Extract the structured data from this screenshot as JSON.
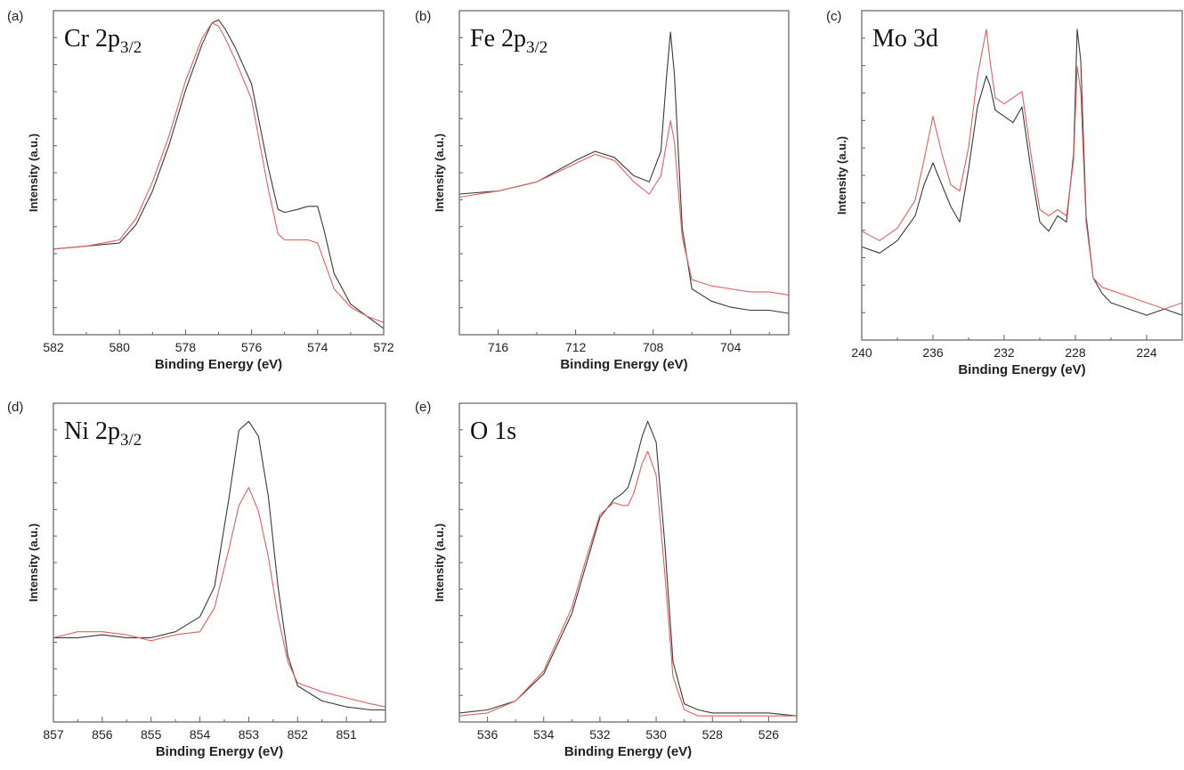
{
  "colors": {
    "series_a": "#3a3a3a",
    "series_b": "#e06060",
    "axis": "#606060"
  },
  "chart_data": [
    {
      "type": "line",
      "letter": "(a)",
      "element": "Cr 2p",
      "subscript": "3/2",
      "xlabel": "Binding Energy (eV)",
      "ylabel": "Intensity (a.u.)",
      "xlim": [
        582,
        572
      ],
      "ylim": [
        0,
        1.06
      ],
      "xticks": [
        582,
        580,
        578,
        576,
        574,
        572
      ],
      "series": [
        {
          "x": [
            582,
            581,
            580,
            579.5,
            579,
            578.5,
            578,
            577.5,
            577.2,
            577,
            576.8,
            576.5,
            576,
            575.5,
            575.2,
            575,
            574.6,
            574.3,
            574,
            573.8,
            573.5,
            573,
            572.5,
            572
          ],
          "values": [
            0.28,
            0.29,
            0.3,
            0.36,
            0.47,
            0.62,
            0.8,
            0.95,
            1.02,
            1.03,
            1.0,
            0.94,
            0.82,
            0.55,
            0.41,
            0.4,
            0.41,
            0.42,
            0.42,
            0.34,
            0.2,
            0.1,
            0.06,
            0.02
          ]
        },
        {
          "x": [
            582,
            581,
            580,
            579.5,
            579,
            578.5,
            578,
            577.5,
            577.2,
            577,
            576.8,
            576.5,
            576,
            575.5,
            575.2,
            575,
            574.6,
            574.3,
            574,
            573.8,
            573.5,
            573,
            572.5,
            572
          ],
          "values": [
            0.28,
            0.29,
            0.31,
            0.38,
            0.5,
            0.65,
            0.83,
            0.97,
            1.02,
            1.01,
            0.97,
            0.9,
            0.77,
            0.48,
            0.33,
            0.31,
            0.31,
            0.31,
            0.3,
            0.24,
            0.15,
            0.09,
            0.06,
            0.04
          ]
        }
      ]
    },
    {
      "type": "line",
      "letter": "(b)",
      "element": "Fe 2p",
      "subscript": "3/2",
      "xlabel": "Binding Energy (eV)",
      "ylabel": "Intensity (a.u.)",
      "xlim": [
        718,
        701
      ],
      "ylim": [
        0,
        1.06
      ],
      "xticks": [
        716,
        712,
        708,
        704
      ],
      "series": [
        {
          "x": [
            718,
            716,
            714,
            712,
            711,
            710,
            709,
            708.2,
            707.6,
            707.3,
            707.1,
            706.9,
            706.5,
            706,
            705,
            704,
            703,
            702,
            701
          ],
          "values": [
            0.46,
            0.47,
            0.5,
            0.57,
            0.6,
            0.58,
            0.52,
            0.5,
            0.6,
            0.85,
            0.99,
            0.85,
            0.35,
            0.15,
            0.11,
            0.09,
            0.08,
            0.08,
            0.07
          ]
        },
        {
          "x": [
            718,
            716,
            714,
            712,
            711,
            710,
            709,
            708.2,
            707.6,
            707.3,
            707.1,
            706.9,
            706.5,
            706,
            705,
            704,
            703,
            702,
            701
          ],
          "values": [
            0.45,
            0.47,
            0.5,
            0.56,
            0.59,
            0.57,
            0.5,
            0.46,
            0.52,
            0.63,
            0.7,
            0.63,
            0.32,
            0.18,
            0.16,
            0.15,
            0.14,
            0.14,
            0.13
          ]
        }
      ]
    },
    {
      "type": "line",
      "letter": "(c)",
      "element": "Mo 3d",
      "subscript": "",
      "xlabel": "Binding Energy (eV)",
      "ylabel": "Intensity (a.u.)",
      "xlim": [
        240,
        222
      ],
      "ylim": [
        0,
        1.06
      ],
      "xticks": [
        240,
        236,
        232,
        228,
        224
      ],
      "series": [
        {
          "x": [
            240,
            239,
            238,
            237,
            236.5,
            236,
            235.5,
            235,
            234.5,
            234,
            233.5,
            233,
            232.8,
            232.5,
            232,
            231.5,
            231,
            230.5,
            230,
            229.5,
            229,
            228.5,
            228.1,
            227.9,
            227.7,
            227.4,
            227,
            226.5,
            226,
            225,
            224,
            223,
            222
          ],
          "values": [
            0.3,
            0.28,
            0.32,
            0.4,
            0.5,
            0.57,
            0.5,
            0.43,
            0.38,
            0.55,
            0.75,
            0.85,
            0.82,
            0.74,
            0.72,
            0.7,
            0.75,
            0.55,
            0.38,
            0.35,
            0.4,
            0.38,
            0.6,
            1.0,
            0.9,
            0.4,
            0.2,
            0.15,
            0.12,
            0.1,
            0.08,
            0.1,
            0.08
          ]
        },
        {
          "x": [
            240,
            239,
            238,
            237,
            236.5,
            236,
            235.5,
            235,
            234.5,
            234,
            233.5,
            233,
            232.8,
            232.5,
            232,
            231.5,
            231,
            230.5,
            230,
            229.5,
            229,
            228.5,
            228.1,
            227.9,
            227.7,
            227.4,
            227,
            226.5,
            226,
            225,
            224,
            223,
            222
          ],
          "values": [
            0.35,
            0.32,
            0.36,
            0.45,
            0.58,
            0.72,
            0.6,
            0.5,
            0.48,
            0.62,
            0.85,
            1.0,
            0.9,
            0.78,
            0.76,
            0.78,
            0.8,
            0.6,
            0.42,
            0.4,
            0.42,
            0.4,
            0.58,
            0.88,
            0.8,
            0.38,
            0.2,
            0.17,
            0.16,
            0.14,
            0.12,
            0.1,
            0.12
          ]
        }
      ]
    },
    {
      "type": "line",
      "letter": "(d)",
      "element": "Ni 2p",
      "subscript": "3/2",
      "xlabel": "Binding Energy (eV)",
      "ylabel": "Intensity (a.u.)",
      "xlim": [
        857,
        850.2
      ],
      "ylim": [
        0,
        1.06
      ],
      "xticks": [
        857,
        856,
        855,
        854,
        853,
        852,
        851
      ],
      "series": [
        {
          "x": [
            857,
            856.5,
            856,
            855.5,
            855,
            854.5,
            854,
            853.7,
            853.4,
            853.2,
            853,
            852.8,
            852.6,
            852.4,
            852.2,
            852,
            851.5,
            851,
            850.5,
            850.2
          ],
          "values": [
            0.28,
            0.28,
            0.29,
            0.28,
            0.28,
            0.3,
            0.35,
            0.45,
            0.75,
            0.97,
            1.0,
            0.95,
            0.75,
            0.45,
            0.22,
            0.12,
            0.07,
            0.05,
            0.04,
            0.04
          ]
        },
        {
          "x": [
            857,
            856.5,
            856,
            855.5,
            855,
            854.5,
            854,
            853.7,
            853.4,
            853.2,
            853,
            852.8,
            852.6,
            852.4,
            852.2,
            852,
            851.5,
            851,
            850.5,
            850.2
          ],
          "values": [
            0.28,
            0.3,
            0.3,
            0.29,
            0.27,
            0.29,
            0.3,
            0.38,
            0.58,
            0.72,
            0.78,
            0.7,
            0.55,
            0.35,
            0.2,
            0.13,
            0.1,
            0.08,
            0.06,
            0.05
          ]
        }
      ]
    },
    {
      "type": "line",
      "letter": "(e)",
      "element": "O 1s",
      "subscript": "",
      "xlabel": "Binding Energy (eV)",
      "ylabel": "Intensity (a.u.)",
      "xlim": [
        537,
        525
      ],
      "ylim": [
        0,
        1.06
      ],
      "xticks": [
        536,
        534,
        532,
        530,
        528,
        526
      ],
      "series": [
        {
          "x": [
            537,
            536,
            535,
            534,
            533,
            532.5,
            532,
            531.5,
            531.2,
            531,
            530.8,
            530.5,
            530.3,
            530,
            529.7,
            529.4,
            529,
            528.5,
            528,
            527,
            526,
            525
          ],
          "values": [
            0.03,
            0.04,
            0.07,
            0.16,
            0.36,
            0.52,
            0.68,
            0.74,
            0.76,
            0.78,
            0.84,
            0.95,
            1.0,
            0.93,
            0.6,
            0.2,
            0.06,
            0.04,
            0.03,
            0.03,
            0.03,
            0.02
          ]
        },
        {
          "x": [
            537,
            536,
            535,
            534,
            533,
            532.5,
            532,
            531.5,
            531.2,
            531,
            530.8,
            530.5,
            530.3,
            530,
            529.7,
            529.4,
            529,
            528.5,
            528,
            527,
            526,
            525
          ],
          "values": [
            0.02,
            0.03,
            0.07,
            0.17,
            0.38,
            0.54,
            0.69,
            0.73,
            0.72,
            0.72,
            0.76,
            0.86,
            0.9,
            0.82,
            0.5,
            0.15,
            0.04,
            0.02,
            0.02,
            0.02,
            0.02,
            0.02
          ]
        }
      ]
    }
  ]
}
